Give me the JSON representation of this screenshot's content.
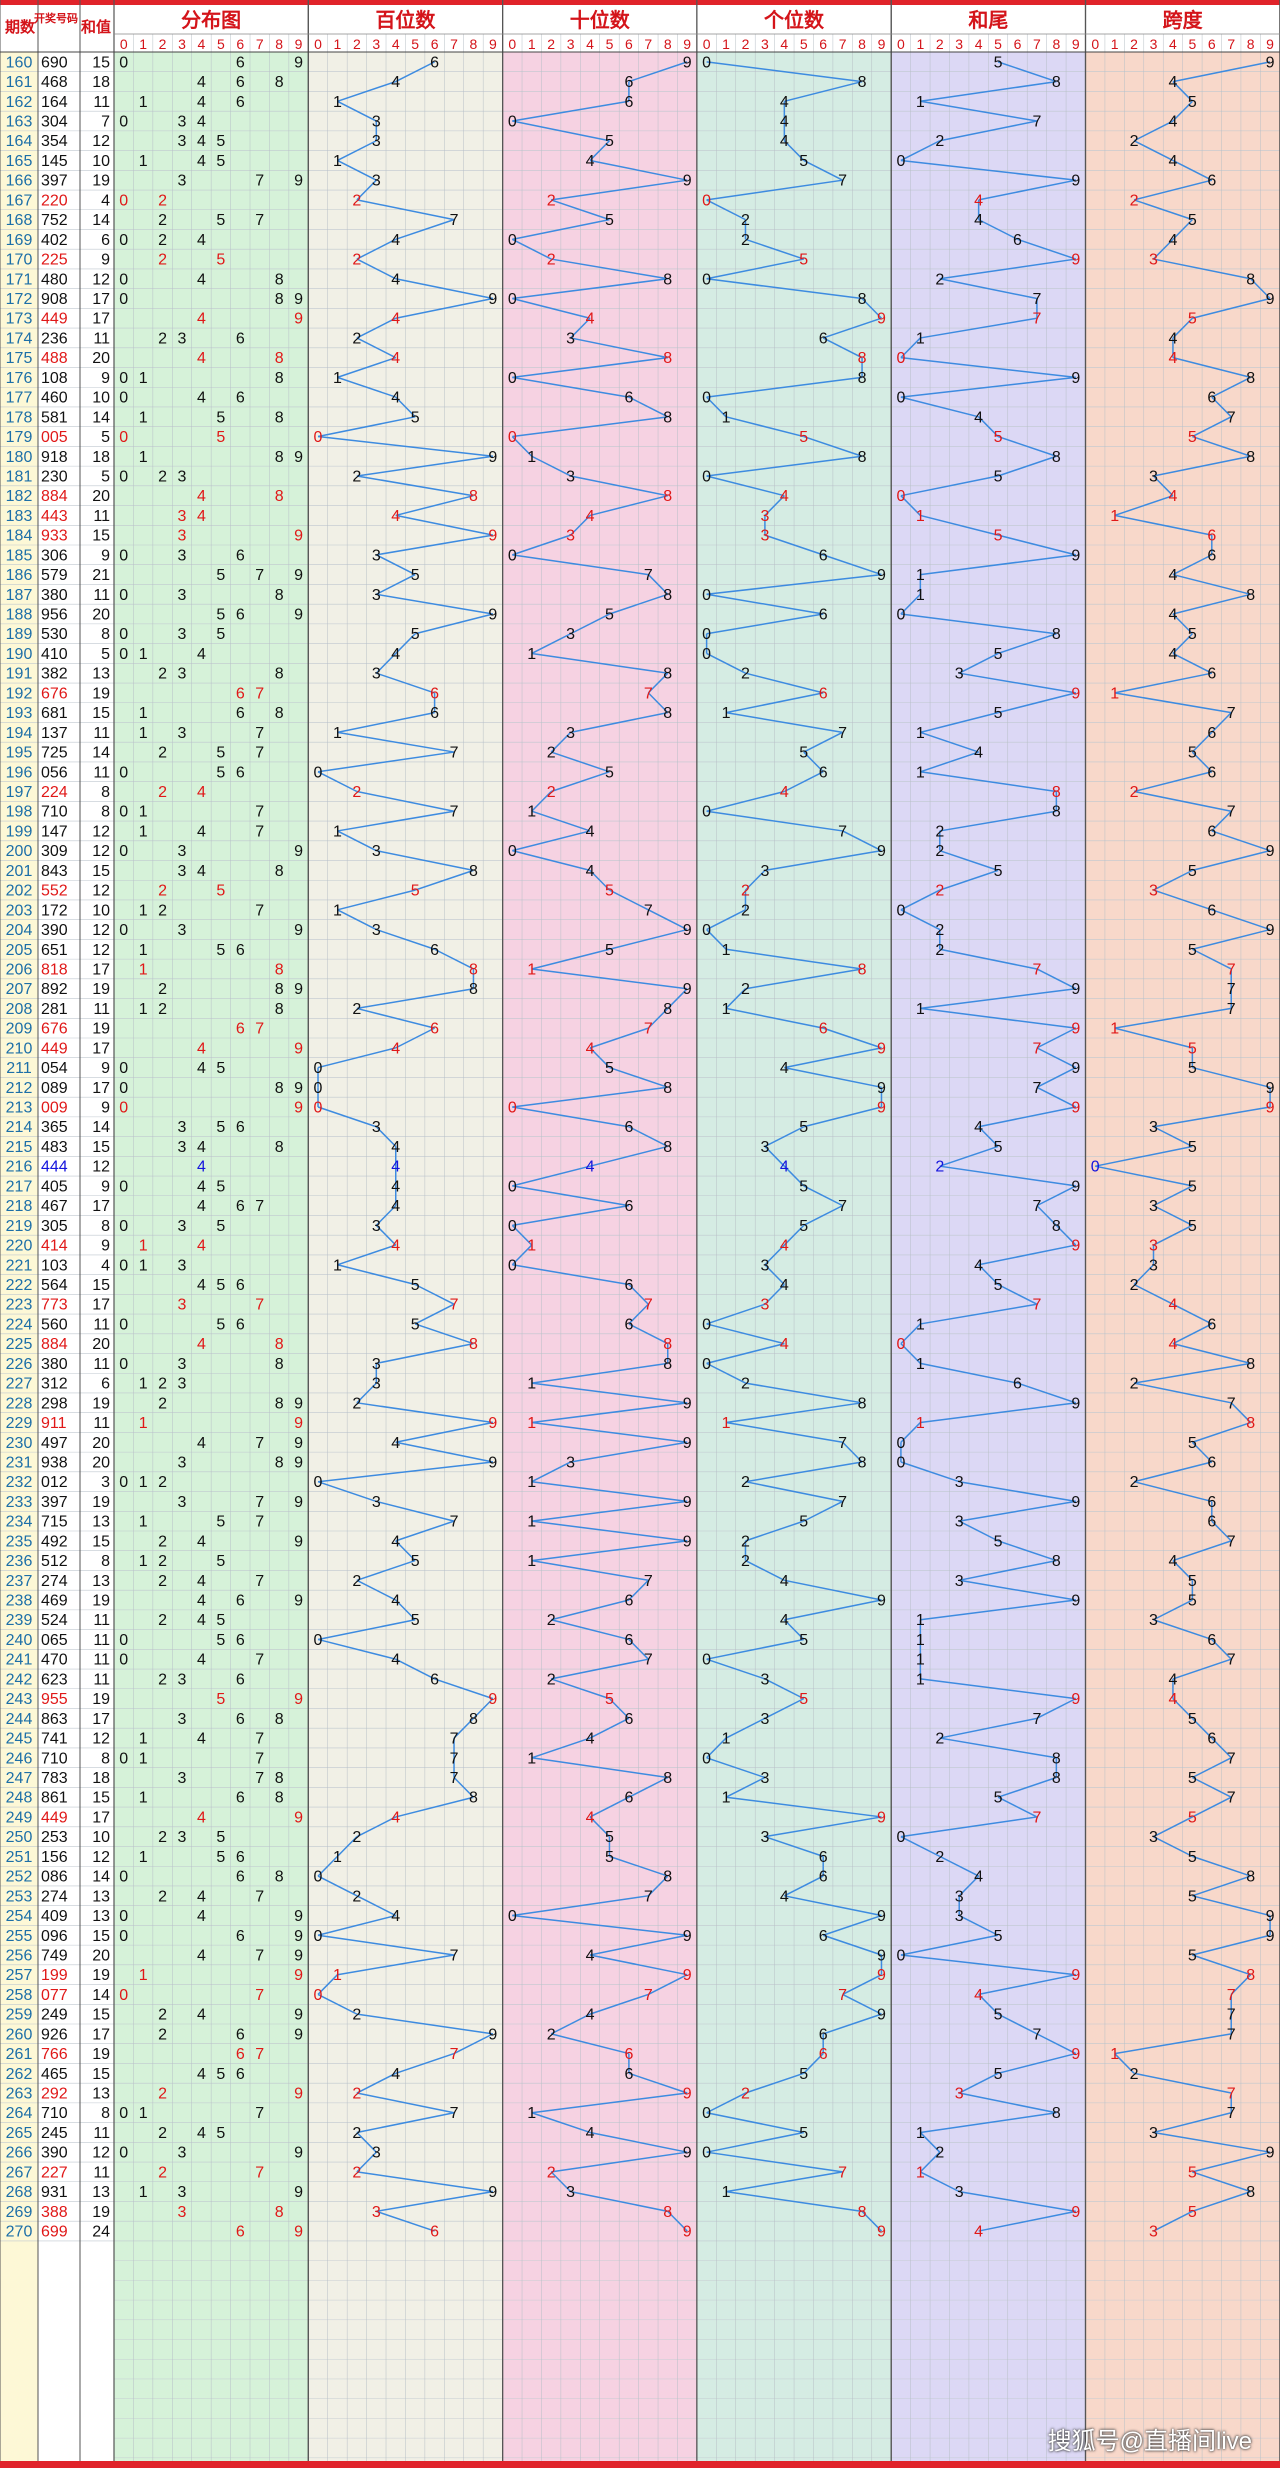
{
  "header": {
    "period_label": "期数",
    "draw_label": "开奖号码",
    "sum_label": "和值",
    "sections": [
      "分布图",
      "百位数",
      "十位数",
      "个位数",
      "和尾",
      "跨度"
    ],
    "digits": [
      "0",
      "1",
      "2",
      "3",
      "4",
      "5",
      "6",
      "7",
      "8",
      "9"
    ]
  },
  "watermark": "搜狐号@直播间live",
  "colors": {
    "header_bg": "#ffffff",
    "header_text": "#d4141a",
    "left_bg": "#fdf8d6",
    "line": "#3d8be0",
    "distribution_bg": "#d6f2d9",
    "hundreds_bg": "#f1f0e6",
    "tens_bg": "#f6d2e2",
    "units_bg": "#d5ece3",
    "sum_tail_bg": "#dcd8f5",
    "span_bg": "#f8d8ca",
    "red_text": "#e01818",
    "blue_text": "#1414dd",
    "black_text": "#111111",
    "period_text": "#1d6fa8"
  },
  "chart_data": {
    "type": "line",
    "title": "",
    "x_label": "期数",
    "x_range": [
      160,
      270
    ],
    "series_names": [
      "百位数",
      "十位数",
      "个位数",
      "和尾",
      "跨度"
    ],
    "ylim": [
      0,
      9
    ],
    "rows": [
      {
        "period": "160",
        "number": "690",
        "sum": 15
      },
      {
        "period": "161",
        "number": "468",
        "sum": 18
      },
      {
        "period": "162",
        "number": "164",
        "sum": 11
      },
      {
        "period": "163",
        "number": "304",
        "sum": 7
      },
      {
        "period": "164",
        "number": "354",
        "sum": 12
      },
      {
        "period": "165",
        "number": "145",
        "sum": 10
      },
      {
        "period": "166",
        "number": "397",
        "sum": 19
      },
      {
        "period": "167",
        "number": "220",
        "sum": 4
      },
      {
        "period": "168",
        "number": "752",
        "sum": 14
      },
      {
        "period": "169",
        "number": "402",
        "sum": 6
      },
      {
        "period": "170",
        "number": "225",
        "sum": 9
      },
      {
        "period": "171",
        "number": "480",
        "sum": 12
      },
      {
        "period": "172",
        "number": "908",
        "sum": 17
      },
      {
        "period": "173",
        "number": "449",
        "sum": 17
      },
      {
        "period": "174",
        "number": "236",
        "sum": 11
      },
      {
        "period": "175",
        "number": "488",
        "sum": 20
      },
      {
        "period": "176",
        "number": "108",
        "sum": 9
      },
      {
        "period": "177",
        "number": "460",
        "sum": 10
      },
      {
        "period": "178",
        "number": "581",
        "sum": 14
      },
      {
        "period": "179",
        "number": "005",
        "sum": 5
      },
      {
        "period": "180",
        "number": "918",
        "sum": 18
      },
      {
        "period": "181",
        "number": "230",
        "sum": 5
      },
      {
        "period": "182",
        "number": "884",
        "sum": 20
      },
      {
        "period": "183",
        "number": "443",
        "sum": 11
      },
      {
        "period": "184",
        "number": "933",
        "sum": 15
      },
      {
        "period": "185",
        "number": "306",
        "sum": 9
      },
      {
        "period": "186",
        "number": "579",
        "sum": 21
      },
      {
        "period": "187",
        "number": "380",
        "sum": 11
      },
      {
        "period": "188",
        "number": "956",
        "sum": 20
      },
      {
        "period": "189",
        "number": "530",
        "sum": 8
      },
      {
        "period": "190",
        "number": "410",
        "sum": 5
      },
      {
        "period": "191",
        "number": "382",
        "sum": 13
      },
      {
        "period": "192",
        "number": "676",
        "sum": 19
      },
      {
        "period": "193",
        "number": "681",
        "sum": 15
      },
      {
        "period": "194",
        "number": "137",
        "sum": 11
      },
      {
        "period": "195",
        "number": "725",
        "sum": 14
      },
      {
        "period": "196",
        "number": "056",
        "sum": 11
      },
      {
        "period": "197",
        "number": "224",
        "sum": 8
      },
      {
        "period": "198",
        "number": "710",
        "sum": 8
      },
      {
        "period": "199",
        "number": "147",
        "sum": 12
      },
      {
        "period": "200",
        "number": "309",
        "sum": 12
      },
      {
        "period": "201",
        "number": "843",
        "sum": 15
      },
      {
        "period": "202",
        "number": "552",
        "sum": 12
      },
      {
        "period": "203",
        "number": "172",
        "sum": 10
      },
      {
        "period": "204",
        "number": "390",
        "sum": 12
      },
      {
        "period": "205",
        "number": "651",
        "sum": 12
      },
      {
        "period": "206",
        "number": "818",
        "sum": 17
      },
      {
        "period": "207",
        "number": "892",
        "sum": 19
      },
      {
        "period": "208",
        "number": "281",
        "sum": 11
      },
      {
        "period": "209",
        "number": "676",
        "sum": 19
      },
      {
        "period": "210",
        "number": "449",
        "sum": 17
      },
      {
        "period": "211",
        "number": "054",
        "sum": 9
      },
      {
        "period": "212",
        "number": "089",
        "sum": 17
      },
      {
        "period": "213",
        "number": "009",
        "sum": 9
      },
      {
        "period": "214",
        "number": "365",
        "sum": 14
      },
      {
        "period": "215",
        "number": "483",
        "sum": 15
      },
      {
        "period": "216",
        "number": "444",
        "sum": 12
      },
      {
        "period": "217",
        "number": "405",
        "sum": 9
      },
      {
        "period": "218",
        "number": "467",
        "sum": 17
      },
      {
        "period": "219",
        "number": "305",
        "sum": 8
      },
      {
        "period": "220",
        "number": "414",
        "sum": 9
      },
      {
        "period": "221",
        "number": "103",
        "sum": 4
      },
      {
        "period": "222",
        "number": "564",
        "sum": 15
      },
      {
        "period": "223",
        "number": "773",
        "sum": 17
      },
      {
        "period": "224",
        "number": "560",
        "sum": 11
      },
      {
        "period": "225",
        "number": "884",
        "sum": 20
      },
      {
        "period": "226",
        "number": "380",
        "sum": 11
      },
      {
        "period": "227",
        "number": "312",
        "sum": 6
      },
      {
        "period": "228",
        "number": "298",
        "sum": 19
      },
      {
        "period": "229",
        "number": "911",
        "sum": 11
      },
      {
        "period": "230",
        "number": "497",
        "sum": 20
      },
      {
        "period": "231",
        "number": "938",
        "sum": 20
      },
      {
        "period": "232",
        "number": "012",
        "sum": 3
      },
      {
        "period": "233",
        "number": "397",
        "sum": 19
      },
      {
        "period": "234",
        "number": "715",
        "sum": 13
      },
      {
        "period": "235",
        "number": "492",
        "sum": 15
      },
      {
        "period": "236",
        "number": "512",
        "sum": 8
      },
      {
        "period": "237",
        "number": "274",
        "sum": 13
      },
      {
        "period": "238",
        "number": "469",
        "sum": 19
      },
      {
        "period": "239",
        "number": "524",
        "sum": 11
      },
      {
        "period": "240",
        "number": "065",
        "sum": 11
      },
      {
        "period": "241",
        "number": "470",
        "sum": 11
      },
      {
        "period": "242",
        "number": "623",
        "sum": 11
      },
      {
        "period": "243",
        "number": "955",
        "sum": 19
      },
      {
        "period": "244",
        "number": "863",
        "sum": 17
      },
      {
        "period": "245",
        "number": "741",
        "sum": 12
      },
      {
        "period": "246",
        "number": "710",
        "sum": 8
      },
      {
        "period": "247",
        "number": "783",
        "sum": 18
      },
      {
        "period": "248",
        "number": "861",
        "sum": 15
      },
      {
        "period": "249",
        "number": "449",
        "sum": 17
      },
      {
        "period": "250",
        "number": "253",
        "sum": 10
      },
      {
        "period": "251",
        "number": "156",
        "sum": 12
      },
      {
        "period": "252",
        "number": "086",
        "sum": 14
      },
      {
        "period": "253",
        "number": "274",
        "sum": 13
      },
      {
        "period": "254",
        "number": "409",
        "sum": 13
      },
      {
        "period": "255",
        "number": "096",
        "sum": 15
      },
      {
        "period": "256",
        "number": "749",
        "sum": 20
      },
      {
        "period": "257",
        "number": "199",
        "sum": 19
      },
      {
        "period": "258",
        "number": "077",
        "sum": 14
      },
      {
        "period": "259",
        "number": "249",
        "sum": 15
      },
      {
        "period": "260",
        "number": "926",
        "sum": 17
      },
      {
        "period": "261",
        "number": "766",
        "sum": 19
      },
      {
        "period": "262",
        "number": "465",
        "sum": 15
      },
      {
        "period": "263",
        "number": "292",
        "sum": 13
      },
      {
        "period": "264",
        "number": "710",
        "sum": 8
      },
      {
        "period": "265",
        "number": "245",
        "sum": 11
      },
      {
        "period": "266",
        "number": "390",
        "sum": 12
      },
      {
        "period": "267",
        "number": "227",
        "sum": 11
      },
      {
        "period": "268",
        "number": "931",
        "sum": 13
      },
      {
        "period": "269",
        "number": "388",
        "sum": 19
      },
      {
        "period": "270",
        "number": "699",
        "sum": 24
      }
    ]
  }
}
